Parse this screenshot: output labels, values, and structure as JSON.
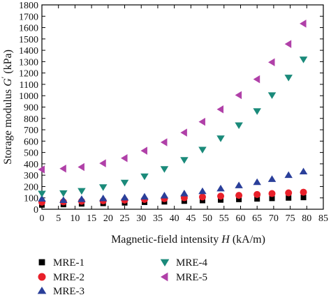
{
  "chart_data": {
    "type": "scatter",
    "xlabel": "Magnetic-field intensity",
    "xlabel_var": "H",
    "xlabel_unit": "(kA/m)",
    "ylabel": "Storage modulus",
    "ylabel_var": "G",
    "ylabel_prime": "′",
    "ylabel_unit": "(kPa)",
    "xlim": [
      0,
      85
    ],
    "ylim": [
      0,
      1800
    ],
    "xticks": [
      "0",
      "5",
      "10",
      "15",
      "20",
      "25",
      "30",
      "35",
      "40",
      "45",
      "50",
      "55",
      "60",
      "65",
      "70",
      "75",
      "80",
      "85"
    ],
    "yticks": [
      "0",
      "100",
      "200",
      "300",
      "400",
      "500",
      "600",
      "700",
      "800",
      "900",
      "1000",
      "1100",
      "1200",
      "1300",
      "1400",
      "1500",
      "1600",
      "1700",
      "1800"
    ],
    "x": [
      0,
      6.5,
      12,
      18.5,
      25,
      31,
      37,
      43,
      48.5,
      54,
      59.5,
      65,
      69.5,
      74.5,
      79
    ],
    "series": [
      {
        "name": "MRE-1",
        "marker": "square",
        "color": "#000000",
        "values": [
          38,
          42,
          48,
          52,
          57,
          62,
          66,
          72,
          77,
          82,
          87,
          92,
          96,
          100,
          104
        ]
      },
      {
        "name": "MRE-2",
        "marker": "circle",
        "color": "#e8202a",
        "values": [
          62,
          65,
          70,
          74,
          80,
          86,
          93,
          101,
          108,
          115,
          122,
          130,
          138,
          144,
          150
        ]
      },
      {
        "name": "MRE-3",
        "marker": "triangle-up",
        "color": "#2a3f9a",
        "values": [
          92,
          80,
          88,
          95,
          102,
          110,
          120,
          138,
          158,
          182,
          210,
          238,
          265,
          300,
          332
        ]
      },
      {
        "name": "MRE-4",
        "marker": "triangle-down",
        "color": "#1a8a7a",
        "values": [
          138,
          142,
          162,
          195,
          235,
          290,
          355,
          435,
          525,
          625,
          740,
          865,
          1005,
          1160,
          1320
        ]
      },
      {
        "name": "MRE-5",
        "marker": "triangle-left",
        "color": "#b040a8",
        "values": [
          350,
          358,
          372,
          405,
          450,
          515,
          590,
          675,
          770,
          880,
          1005,
          1145,
          1295,
          1455,
          1635
        ]
      }
    ],
    "grid": false,
    "legend_position": "below"
  }
}
